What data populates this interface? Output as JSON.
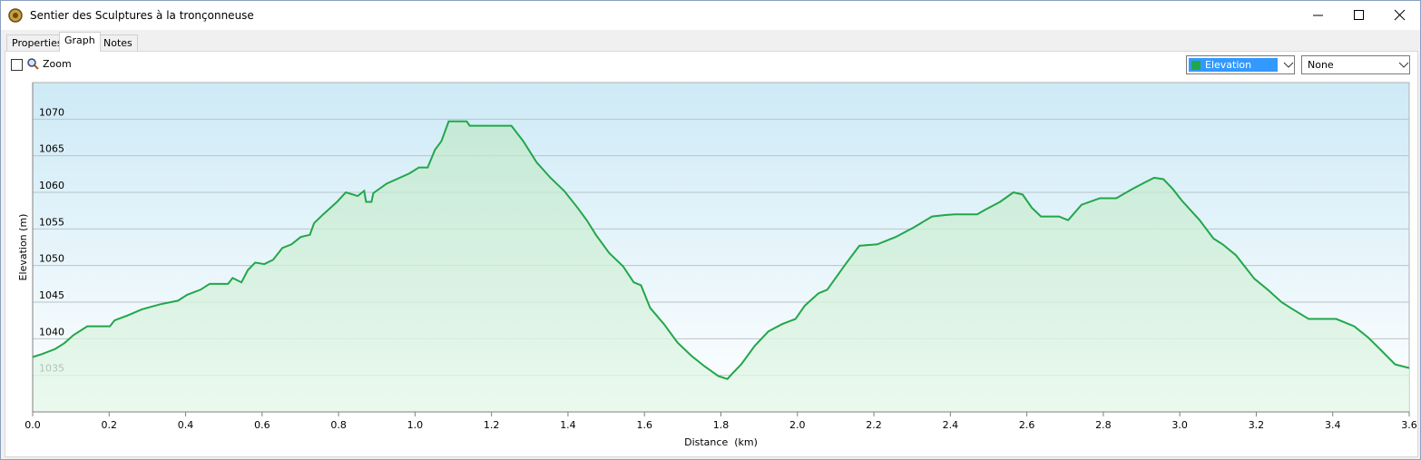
{
  "window": {
    "title": "Sentier des Sculptures à la tronçonneuse",
    "tabs": [
      "Properties",
      "Graph",
      "Notes"
    ],
    "zoom_label": "Zoom",
    "secondary_dropdown": "None"
  },
  "chart_data": {
    "type": "area",
    "xlabel": "Distance  (km)",
    "ylabel": "Elevation (m)",
    "x": [
      0,
      0.024,
      0.059,
      0.083,
      0.107,
      0.143,
      0.202,
      0.214,
      0.249,
      0.285,
      0.333,
      0.38,
      0.404,
      0.439,
      0.463,
      0.511,
      0.523,
      0.546,
      0.563,
      0.582,
      0.606,
      0.629,
      0.653,
      0.677,
      0.701,
      0.725,
      0.736,
      0.76,
      0.796,
      0.819,
      0.85,
      0.867,
      0.872,
      0.886,
      0.891,
      0.926,
      0.986,
      1.01,
      1.033,
      1.052,
      1.069,
      1.088,
      1.135,
      1.143,
      1.252,
      1.283,
      1.318,
      1.354,
      1.39,
      1.425,
      1.449,
      1.473,
      1.508,
      1.544,
      1.572,
      1.591,
      1.615,
      1.651,
      1.686,
      1.722,
      1.758,
      1.793,
      1.817,
      1.829,
      1.853,
      1.888,
      1.924,
      1.96,
      1.995,
      2.019,
      2.055,
      2.078,
      2.126,
      2.162,
      2.209,
      2.257,
      2.304,
      2.352,
      2.387,
      2.411,
      2.47,
      2.494,
      2.53,
      2.565,
      2.589,
      2.613,
      2.637,
      2.684,
      2.708,
      2.743,
      2.791,
      2.834,
      2.874,
      2.91,
      2.933,
      2.957,
      2.981,
      3.005,
      3.052,
      3.088,
      3.112,
      3.147,
      3.195,
      3.23,
      3.266,
      3.29,
      3.337,
      3.409,
      3.456,
      3.492,
      3.527,
      3.563,
      3.6
    ],
    "series": [
      {
        "name": "Elevation",
        "color": "#22a64a",
        "values": [
          1037.5,
          1037.9,
          1038.6,
          1039.4,
          1040.5,
          1041.7,
          1041.7,
          1042.5,
          1043.2,
          1044,
          1044.7,
          1045.2,
          1046,
          1046.7,
          1047.5,
          1047.5,
          1048.3,
          1047.7,
          1049.4,
          1050.4,
          1050.2,
          1050.8,
          1052.4,
          1052.9,
          1053.9,
          1054.2,
          1055.8,
          1057,
          1058.7,
          1060,
          1059.5,
          1060.2,
          1058.7,
          1058.7,
          1059.9,
          1061.2,
          1062.6,
          1063.4,
          1063.4,
          1065.8,
          1067,
          1069.7,
          1069.7,
          1069.1,
          1069.1,
          1067,
          1064.1,
          1062,
          1060.2,
          1057.9,
          1056.2,
          1054.2,
          1051.7,
          1049.9,
          1047.7,
          1047.3,
          1044.2,
          1042,
          1039.5,
          1037.7,
          1036.2,
          1034.9,
          1034.5,
          1035.2,
          1036.5,
          1039,
          1041,
          1042,
          1042.7,
          1044.5,
          1046.2,
          1046.7,
          1050.2,
          1052.7,
          1052.9,
          1053.9,
          1055.2,
          1056.7,
          1056.9,
          1057,
          1057,
          1057.7,
          1058.7,
          1060,
          1059.7,
          1057.9,
          1056.7,
          1056.7,
          1056.2,
          1058.3,
          1059.2,
          1059.2,
          1060.4,
          1061.4,
          1062,
          1061.8,
          1060.5,
          1058.9,
          1056.2,
          1053.7,
          1052.9,
          1051.4,
          1048.2,
          1046.7,
          1045,
          1044.2,
          1042.7,
          1042.7,
          1041.7,
          1040.2,
          1038.4,
          1036.5,
          1036
        ]
      }
    ],
    "xlim": [
      0,
      3.6
    ],
    "ylim": [
      1030,
      1075
    ],
    "xticks": [
      {
        "value": 0,
        "label": "0.0"
      },
      0.2,
      0.4,
      0.6,
      0.8,
      {
        "value": 1,
        "label": "1.0"
      },
      1.2,
      1.4,
      1.6,
      1.8,
      {
        "value": 2,
        "label": "2.0"
      },
      2.2,
      2.4,
      2.6,
      2.8,
      {
        "value": 3,
        "label": "3.0"
      },
      3.2,
      3.4,
      3.6
    ],
    "yticks": [
      1035,
      1040,
      1045,
      1050,
      1055,
      1060,
      1065,
      1070
    ],
    "grid": true
  }
}
